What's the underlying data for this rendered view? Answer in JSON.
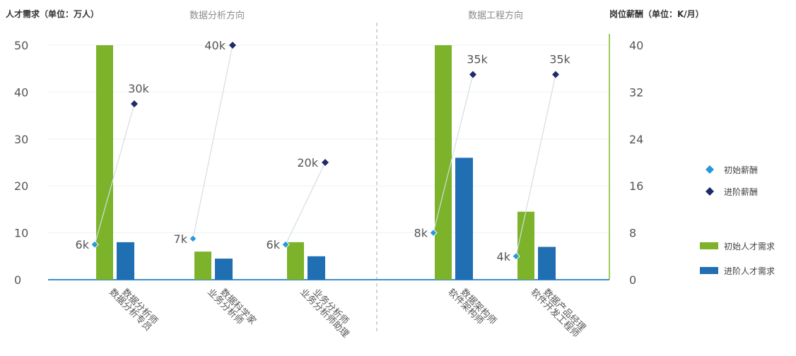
{
  "chart_data": {
    "type": "bar",
    "y_left_title": "人才需求（单位：万人）",
    "y_right_title": "岗位薪酬（单位：K/月）",
    "sections": [
      "数据分析方向",
      "数据工程方向"
    ],
    "y_left_ticks": [
      "0",
      "10",
      "20",
      "30",
      "40",
      "50"
    ],
    "y_right_ticks": [
      "0",
      "8",
      "16",
      "24",
      "32",
      "40"
    ],
    "ylim_left": [
      0,
      50
    ],
    "ylim_right": [
      0,
      40
    ],
    "groups": [
      {
        "initial_role": "数据分析师",
        "advanced_role": "数据分析专员",
        "initial_demand": 50,
        "advanced_demand": 8,
        "initial_salary": 6,
        "advanced_salary": 30,
        "initial_salary_label": "6k",
        "advanced_salary_label": "30k"
      },
      {
        "initial_role": "数据科学家",
        "advanced_role": "业务分析师",
        "initial_demand": 6,
        "advanced_demand": 4.5,
        "initial_salary": 7,
        "advanced_salary": 40,
        "initial_salary_label": "7k",
        "advanced_salary_label": "40k"
      },
      {
        "initial_role": "业务分析师",
        "advanced_role": "业务分析师助理",
        "initial_demand": 8,
        "advanced_demand": 5,
        "initial_salary": 6,
        "advanced_salary": 20,
        "initial_salary_label": "6k",
        "advanced_salary_label": "20k"
      },
      {
        "initial_role": "数据架构师",
        "advanced_role": "软件架构师",
        "initial_demand": 50,
        "advanced_demand": 26,
        "initial_salary": 8,
        "advanced_salary": 35,
        "initial_salary_label": "8k",
        "advanced_salary_label": "35k"
      },
      {
        "initial_role": "数据产品经理",
        "advanced_role": "软件开发工程师",
        "initial_demand": 14.5,
        "advanced_demand": 7,
        "initial_salary": 4,
        "advanced_salary": 35,
        "initial_salary_label": "4k",
        "advanced_salary_label": "35k"
      }
    ],
    "legend": [
      {
        "label": "初始薪酬",
        "kind": "diamond",
        "color": "#2a98d8"
      },
      {
        "label": "进阶薪酬",
        "kind": "diamond",
        "color": "#1d2b6b"
      },
      {
        "label": "初始人才需求",
        "kind": "bar",
        "color": "#7cb32a"
      },
      {
        "label": "进阶人才需求",
        "kind": "bar",
        "color": "#1f6fb2"
      }
    ],
    "colors": {
      "initial_demand": "#7cb32a",
      "advanced_demand": "#1f6fb2",
      "initial_salary": "#2a98d8",
      "advanced_salary": "#1d2b6b",
      "baseline": "#3a8fd0",
      "right_axis": "#9fcb5a"
    }
  }
}
